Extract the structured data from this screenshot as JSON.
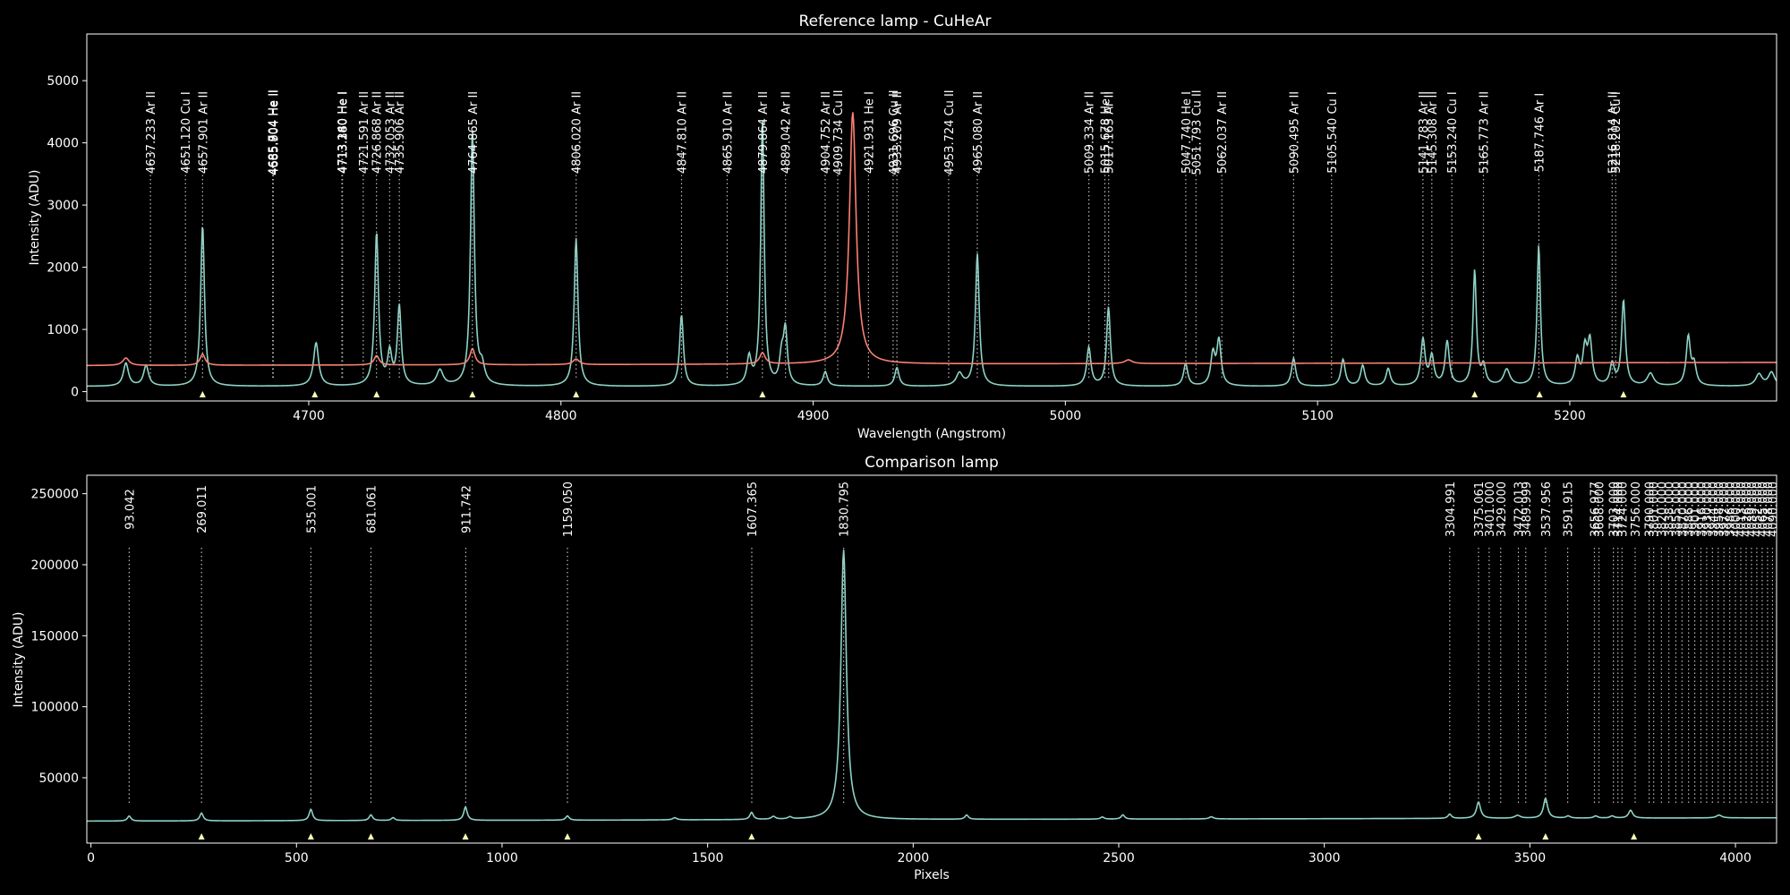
{
  "colors": {
    "background": "#000000",
    "axes": "#ffffff",
    "comparison": "#8dd3c7",
    "reference": "#fb8072",
    "marker": "#ffffb3",
    "vline": "#bbbbbb"
  },
  "chart_data": [
    {
      "type": "line",
      "title": "Reference lamp - CuHeAr",
      "xlabel": "Wavelength (Angstrom)",
      "ylabel": "Intensity (ADU)",
      "xlim": [
        4612,
        5282
      ],
      "ylim": [
        -150,
        5750
      ],
      "xticks": [
        4700,
        4800,
        4900,
        5000,
        5100,
        5200
      ],
      "yticks": [
        0,
        1000,
        2000,
        3000,
        4000,
        5000
      ],
      "grid": false,
      "series": [
        {
          "name": "",
          "color_key": "comparison",
          "baseline": 85,
          "peaks": [
            [
              4627.5,
              370,
              1.2
            ],
            [
              4635.5,
              330,
              1.2
            ],
            [
              4657.9,
              2600,
              0.9
            ],
            [
              4702.9,
              700,
              1.2
            ],
            [
              4726.9,
              2460,
              0.9
            ],
            [
              4732.1,
              500,
              1.0
            ],
            [
              4735.9,
              1270,
              0.9
            ],
            [
              4752,
              250,
              1.5
            ],
            [
              4764.9,
              4100,
              0.9
            ],
            [
              4768.7,
              270,
              1.2
            ],
            [
              4806.0,
              2380,
              0.9
            ],
            [
              4847.8,
              1150,
              0.9
            ],
            [
              4874.6,
              440,
              1.0
            ],
            [
              4879.9,
              4300,
              0.8
            ],
            [
              4887.5,
              440,
              1.0
            ],
            [
              4889.0,
              850,
              0.9
            ],
            [
              4904.8,
              230,
              1.0
            ],
            [
              4933.2,
              300,
              1.0
            ],
            [
              4958,
              200,
              1.5
            ],
            [
              4965.1,
              2130,
              0.9
            ],
            [
              5009.3,
              620,
              1.0
            ],
            [
              5017.1,
              1270,
              0.9
            ],
            [
              5047.7,
              360,
              1.0
            ],
            [
              5058.5,
              500,
              1.0
            ],
            [
              5060.9,
              720,
              1.0
            ],
            [
              5090.5,
              450,
              1.0
            ],
            [
              5110.1,
              430,
              1.0
            ],
            [
              5117.9,
              330,
              1.0
            ],
            [
              5128,
              280,
              1.0
            ],
            [
              5141.8,
              740,
              1.0
            ],
            [
              5145.3,
              460,
              1.0
            ],
            [
              5151.4,
              710,
              1.0
            ],
            [
              5162.3,
              1850,
              0.8
            ],
            [
              5165.8,
              300,
              1.0
            ],
            [
              5175,
              260,
              1.5
            ],
            [
              5187.7,
              2260,
              0.8
            ],
            [
              5203,
              410,
              1.0
            ],
            [
              5206,
              560,
              1.0
            ],
            [
              5208,
              690,
              1.0
            ],
            [
              5216.8,
              340,
              1.0
            ],
            [
              5221.3,
              1370,
              0.9
            ],
            [
              5232,
              200,
              1.5
            ],
            [
              5247.0,
              780,
              1.0
            ],
            [
              5249.3,
              320,
              1.0
            ],
            [
              5275,
              190,
              1.5
            ],
            [
              5280,
              220,
              1.5
            ]
          ]
        },
        {
          "name": "",
          "color_key": "reference",
          "baseline_start": 420,
          "baseline_end": 470,
          "peaks": [
            [
              4627.5,
              120,
              1.5
            ],
            [
              4657.9,
              180,
              1.2
            ],
            [
              4726.9,
              150,
              1.2
            ],
            [
              4764.9,
              260,
              1.2
            ],
            [
              4806.0,
              90,
              1.5
            ],
            [
              4879.9,
              180,
              1.3
            ],
            [
              4915.7,
              4050,
              1.6
            ],
            [
              5025,
              60,
              1.8
            ]
          ]
        }
      ],
      "markers_x": [
        4657.9,
        4702.4,
        4726.9,
        4764.9,
        4806.0,
        4879.9,
        5162.3,
        5188.0,
        5221.3
      ],
      "lines": [
        {
          "x": 4637.233,
          "label": "4637.233  Ar II"
        },
        {
          "x": 4651.12,
          "label": "4651.120  Cu I"
        },
        {
          "x": 4657.901,
          "label": "4657.901  Ar II"
        },
        {
          "x": 4685.704,
          "label": "4685.704 He II"
        },
        {
          "x": 4685.804,
          "label": "4685.804 He II"
        },
        {
          "x": 4685.904,
          "label": "4685.904 He II"
        },
        {
          "x": 4713.14,
          "label": "4713.140 He I"
        },
        {
          "x": 4713.26,
          "label": "4713.260 He I"
        },
        {
          "x": 4713.38,
          "label": "4713.380 He I"
        },
        {
          "x": 4721.591,
          "label": "4721.591  Ar II"
        },
        {
          "x": 4726.868,
          "label": "4726.868  Ar II"
        },
        {
          "x": 4732.053,
          "label": "4732.053  Ar II"
        },
        {
          "x": 4735.906,
          "label": "4735.906  Ar II"
        },
        {
          "x": 4764.865,
          "label": "4764.865  Ar II"
        },
        {
          "x": 4806.02,
          "label": "4806.020  Ar II"
        },
        {
          "x": 4847.81,
          "label": "4847.810  Ar II"
        },
        {
          "x": 4865.91,
          "label": "4865.910  Ar II"
        },
        {
          "x": 4879.864,
          "label": "4879.864  Ar II"
        },
        {
          "x": 4889.042,
          "label": "4889.042  Ar II"
        },
        {
          "x": 4904.752,
          "label": "4904.752  Ar II"
        },
        {
          "x": 4909.734,
          "label": "4909.734  Cu II"
        },
        {
          "x": 4921.931,
          "label": "4921.931 He I"
        },
        {
          "x": 4931.696,
          "label": "4931.696  Cu II"
        },
        {
          "x": 4933.209,
          "label": "4933.209  Ar II"
        },
        {
          "x": 4953.724,
          "label": "4953.724  Cu II"
        },
        {
          "x": 4965.08,
          "label": "4965.080  Ar II"
        },
        {
          "x": 5009.334,
          "label": "5009.334  Ar II"
        },
        {
          "x": 5015.678,
          "label": "5015.678 He I"
        },
        {
          "x": 5017.163,
          "label": "5017.163  Ar II"
        },
        {
          "x": 5047.74,
          "label": "5047.740 He I"
        },
        {
          "x": 5051.793,
          "label": "5051.793  Cu II"
        },
        {
          "x": 5062.037,
          "label": "5062.037  Ar II"
        },
        {
          "x": 5090.495,
          "label": "5090.495  Ar II"
        },
        {
          "x": 5105.54,
          "label": "5105.540  Cu I"
        },
        {
          "x": 5141.783,
          "label": "5141.783  Ar II"
        },
        {
          "x": 5145.308,
          "label": "5145.308  Ar II"
        },
        {
          "x": 5153.24,
          "label": "5153.240  Cu I"
        },
        {
          "x": 5165.773,
          "label": "5165.773  Ar II"
        },
        {
          "x": 5187.746,
          "label": "5187.746  Ar I"
        },
        {
          "x": 5216.814,
          "label": "5216.814  Ar II"
        },
        {
          "x": 5218.202,
          "label": "5218.202  Cu I"
        }
      ]
    },
    {
      "type": "line",
      "title": "Comparison lamp",
      "xlabel": "Pixels",
      "ylabel": "Intensity (ADU)",
      "xlim": [
        -10,
        4100
      ],
      "ylim": [
        4000,
        263000
      ],
      "xticks": [
        0,
        500,
        1000,
        1500,
        2000,
        2500,
        3000,
        3500,
        4000
      ],
      "yticks": [
        50000,
        100000,
        150000,
        200000,
        250000
      ],
      "grid": false,
      "series": [
        {
          "name": "",
          "color_key": "comparison",
          "baseline_start": 19500,
          "baseline_end": 21800,
          "peaks": [
            [
              93,
              3500,
              5
            ],
            [
              269,
              5500,
              5
            ],
            [
              535,
              8000,
              5
            ],
            [
              681,
              4000,
              5
            ],
            [
              735,
              2000,
              5
            ],
            [
              911,
              9500,
              5
            ],
            [
              1159,
              3000,
              5
            ],
            [
              1420,
              1500,
              6
            ],
            [
              1607,
              5000,
              5
            ],
            [
              1660,
              2000,
              6
            ],
            [
              1700,
              1500,
              6
            ],
            [
              1830.8,
              190000,
              8
            ],
            [
              2130,
              3000,
              5
            ],
            [
              2460,
              1500,
              5
            ],
            [
              2510,
              3000,
              5
            ],
            [
              2725,
              1500,
              6
            ],
            [
              3305,
              3000,
              5
            ],
            [
              3375,
              11500,
              6
            ],
            [
              3470,
              2000,
              8
            ],
            [
              3538,
              14000,
              6
            ],
            [
              3593,
              1500,
              6
            ],
            [
              3660,
              1500,
              6
            ],
            [
              3700,
              1500,
              6
            ],
            [
              3745,
              5500,
              6
            ],
            [
              3960,
              2000,
              8
            ]
          ]
        }
      ],
      "markers_x": [
        269,
        535,
        681,
        911,
        1159,
        1607,
        3375,
        3538,
        3753
      ],
      "lines": [
        {
          "x": 93.042,
          "label": "93.042"
        },
        {
          "x": 269.011,
          "label": "269.011"
        },
        {
          "x": 535.001,
          "label": "535.001"
        },
        {
          "x": 681.061,
          "label": "681.061"
        },
        {
          "x": 911.742,
          "label": "911.742"
        },
        {
          "x": 1159.05,
          "label": "1159.050"
        },
        {
          "x": 1607.365,
          "label": "1607.365"
        },
        {
          "x": 1830.795,
          "label": "1830.795"
        },
        {
          "x": 3304.991,
          "label": "3304.991"
        },
        {
          "x": 3375.061,
          "label": "3375.061"
        },
        {
          "x": 3401.0,
          "label": "3401.000"
        },
        {
          "x": 3429.0,
          "label": "3429.000"
        },
        {
          "x": 3472.013,
          "label": "3472.013"
        },
        {
          "x": 3489.999,
          "label": "3489.999"
        },
        {
          "x": 3537.956,
          "label": "3537.956"
        },
        {
          "x": 3591.915,
          "label": "3591.915"
        },
        {
          "x": 3656.977,
          "label": "3656.977"
        },
        {
          "x": 3668.0,
          "label": "3668.000"
        },
        {
          "x": 3703.0,
          "label": "3703.000"
        },
        {
          "x": 3714.0,
          "label": "3714.000"
        },
        {
          "x": 3724.0,
          "label": "3724.000"
        },
        {
          "x": 3756.0,
          "label": "3756.000"
        },
        {
          "x": 3790.0,
          "label": "3790.000"
        },
        {
          "x": 3801.0,
          "label": "3801.000"
        },
        {
          "x": 3820.0,
          "label": "3820.000"
        },
        {
          "x": 3838.0,
          "label": "3838.000"
        },
        {
          "x": 3855.0,
          "label": "3855.000"
        },
        {
          "x": 3870.0,
          "label": "3870.000"
        },
        {
          "x": 3886.0,
          "label": "3886.000"
        },
        {
          "x": 3901.0,
          "label": "3901.000"
        },
        {
          "x": 3916.0,
          "label": "3916.000"
        },
        {
          "x": 3930.0,
          "label": "3930.000"
        },
        {
          "x": 3944.0,
          "label": "3944.000"
        },
        {
          "x": 3958.0,
          "label": "3958.000"
        },
        {
          "x": 3972.0,
          "label": "3972.000"
        },
        {
          "x": 3986.0,
          "label": "3986.000"
        },
        {
          "x": 4000.0,
          "label": "4000.000"
        },
        {
          "x": 4013.0,
          "label": "4013.000"
        },
        {
          "x": 4026.0,
          "label": "4026.000"
        },
        {
          "x": 4039.0,
          "label": "4039.000"
        },
        {
          "x": 4052.0,
          "label": "4052.000"
        },
        {
          "x": 4065.0,
          "label": "4065.000"
        },
        {
          "x": 4078.0,
          "label": "4078.000"
        },
        {
          "x": 4090.0,
          "label": "4090.000"
        }
      ]
    }
  ]
}
